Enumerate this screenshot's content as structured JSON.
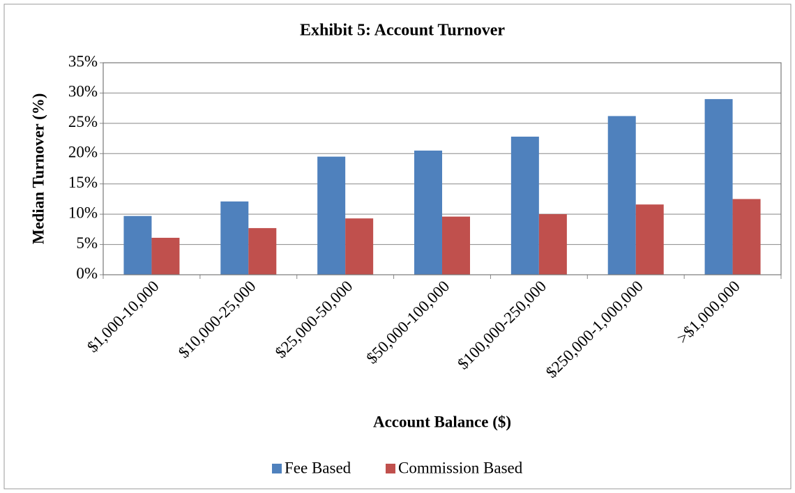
{
  "chart_data": {
    "type": "bar",
    "title": "Exhibit 5: Account Turnover",
    "x_label": "Account Balance ($)",
    "y_label": "Median Turnover (%)",
    "categories": [
      "$1,000-10,000",
      "$10,000-25,000",
      "$25,000-50,000",
      "$50,000-100,000",
      "$100,000-250,000",
      "$250,000-1,000,000",
      ">$1,000,000"
    ],
    "series": [
      {
        "name": "Fee Based",
        "color": "#4f81bd",
        "values": [
          9.7,
          12.1,
          19.5,
          20.5,
          22.8,
          26.2,
          29.0
        ]
      },
      {
        "name": "Commission Based",
        "color": "#c0504d",
        "values": [
          6.1,
          7.7,
          9.3,
          9.6,
          10.0,
          11.6,
          12.5
        ]
      }
    ],
    "ylim": [
      0,
      35
    ],
    "yticks": [
      {
        "value": 0,
        "label": "0%"
      },
      {
        "value": 5,
        "label": "5%"
      },
      {
        "value": 10,
        "label": "10%"
      },
      {
        "value": 15,
        "label": "15%"
      },
      {
        "value": 20,
        "label": "20%"
      },
      {
        "value": 25,
        "label": "25%"
      },
      {
        "value": 30,
        "label": "30%"
      },
      {
        "value": 35,
        "label": "35%"
      }
    ],
    "grid": true,
    "legend": "bottom"
  }
}
